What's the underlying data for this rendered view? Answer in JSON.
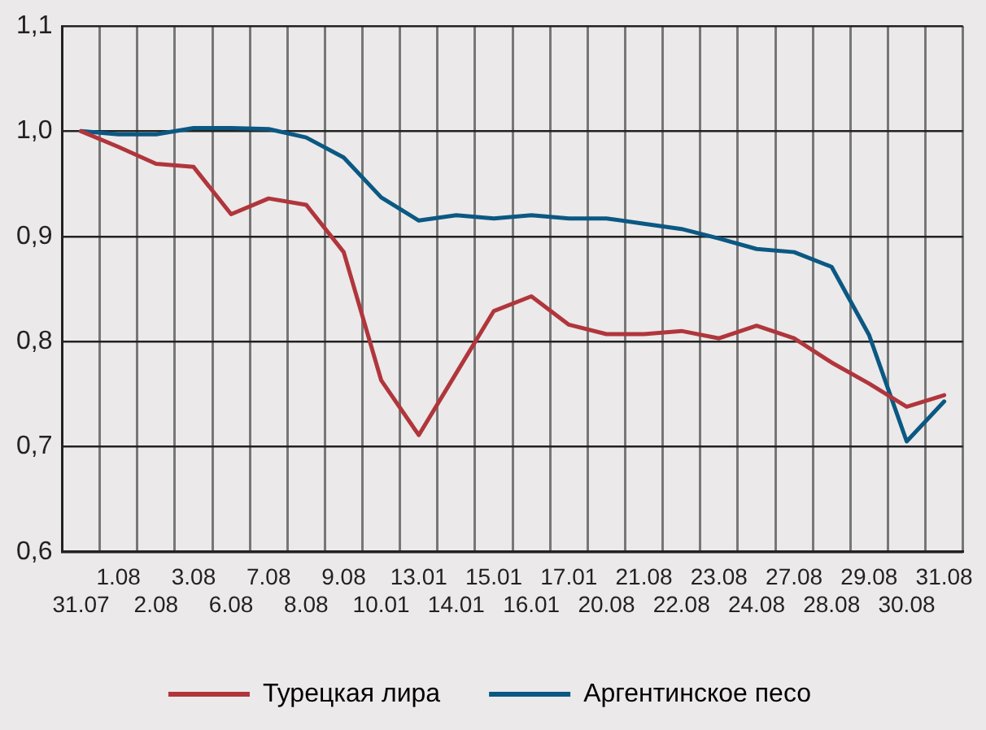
{
  "chart_data": {
    "type": "line",
    "categories": [
      "31.07",
      "1.08",
      "2.08",
      "3.08",
      "6.08",
      "7.08",
      "8.08",
      "9.08",
      "10.01",
      "13.01",
      "14.01",
      "15.01",
      "16.01",
      "17.01",
      "20.08",
      "21.08",
      "22.08",
      "23.08",
      "24.08",
      "27.08",
      "28.08",
      "29.08",
      "30.08",
      "31.08"
    ],
    "series": [
      {
        "name": "Турецкая лира",
        "color": "#b0363c",
        "values": [
          1.0,
          0.985,
          0.969,
          0.966,
          0.921,
          0.936,
          0.93,
          0.885,
          0.763,
          0.711,
          0.77,
          0.829,
          0.843,
          0.816,
          0.807,
          0.807,
          0.81,
          0.803,
          0.815,
          0.803,
          0.78,
          0.76,
          0.738,
          0.749
        ]
      },
      {
        "name": "Аргентинское песо",
        "color": "#0b5883",
        "values": [
          1.0,
          0.997,
          0.997,
          1.003,
          1.003,
          1.002,
          0.994,
          0.975,
          0.937,
          0.915,
          0.92,
          0.917,
          0.92,
          0.917,
          0.917,
          0.912,
          0.907,
          0.898,
          0.888,
          0.885,
          0.871,
          0.806,
          0.705,
          0.743
        ]
      }
    ],
    "ylim": [
      0.6,
      1.1
    ],
    "yticks": [
      {
        "value": 0.6,
        "label": "0,6"
      },
      {
        "value": 0.7,
        "label": "0,7"
      },
      {
        "value": 0.8,
        "label": "0,8"
      },
      {
        "value": 0.9,
        "label": "0,9"
      },
      {
        "value": 1.0,
        "label": "1,0"
      },
      {
        "value": 1.1,
        "label": "1,1"
      }
    ],
    "grid": true,
    "legend": "bottom",
    "marker": "none",
    "line_style": "solid"
  }
}
